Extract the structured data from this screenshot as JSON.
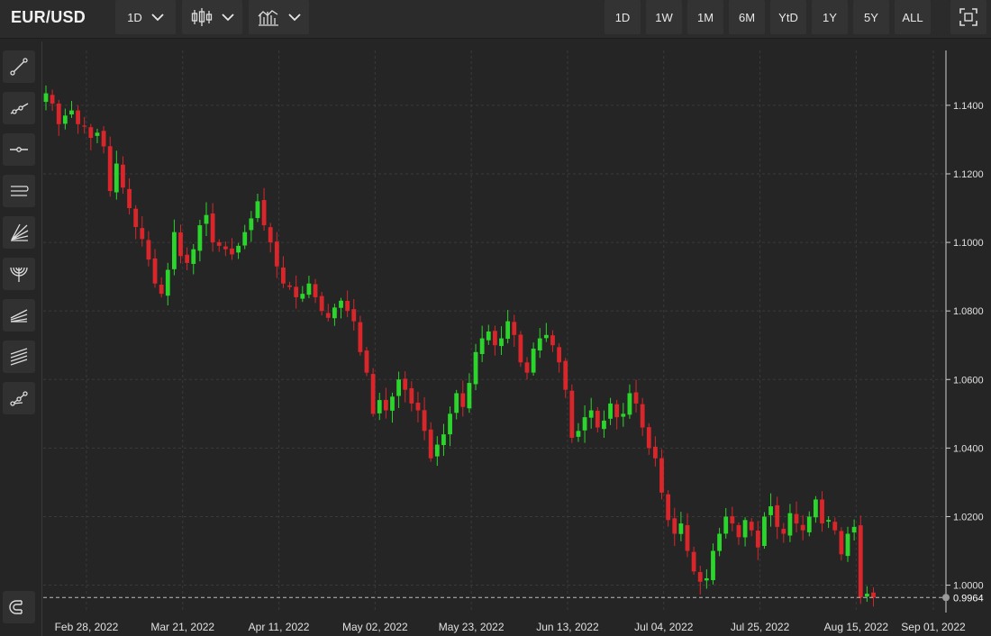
{
  "header": {
    "symbol": "EUR/USD",
    "interval_label": "1D",
    "chart_type_icon": "candlestick-icon",
    "indicators_icon": "indicators-icon",
    "ranges": [
      "1D",
      "1W",
      "1M",
      "6M",
      "YtD",
      "1Y",
      "5Y",
      "ALL"
    ],
    "fullscreen_icon": "fullscreen-icon"
  },
  "left_tools": [
    "trend-line-icon",
    "ray-icon",
    "horizontal-line-icon",
    "parallel-channel-icon",
    "fan-icon",
    "arc-icon",
    "pitchfork-icon",
    "fibonacci-icon",
    "path-icon",
    "magnet-icon"
  ],
  "colors": {
    "up": "#2bd52b",
    "down": "#d9262b",
    "background": "#252525",
    "grid": "#3a3a3a"
  },
  "chart_data": {
    "type": "candlestick",
    "y_ticks": [
      "1.1400",
      "1.1200",
      "1.1000",
      "1.0800",
      "1.0600",
      "1.0400",
      "1.0200",
      "1.0000"
    ],
    "x_ticks": [
      "Feb 28, 2022",
      "Mar 21, 2022",
      "Apr 11, 2022",
      "May 02, 2022",
      "May 23, 2022",
      "Jun 13, 2022",
      "Jul 04, 2022",
      "Jul 25, 2022",
      "Aug 15, 2022",
      "Sep 01, 2022"
    ],
    "last_price": "0.9964",
    "ylim": [
      0.992,
      1.156
    ],
    "closes": [
      1.1435,
      1.1405,
      1.1345,
      1.137,
      1.1385,
      1.1345,
      1.134,
      1.1305,
      1.132,
      1.128,
      1.115,
      1.123,
      1.116,
      1.11,
      1.1045,
      1.101,
      1.095,
      1.088,
      1.085,
      1.092,
      1.103,
      1.096,
      1.094,
      1.098,
      1.105,
      1.108,
      1.1,
      1.099,
      1.098,
      1.0965,
      1.099,
      1.103,
      1.107,
      1.112,
      1.105,
      1.1,
      1.093,
      1.088,
      1.087,
      1.084,
      1.085,
      1.088,
      1.084,
      1.08,
      1.078,
      1.081,
      1.083,
      1.08,
      1.077,
      1.068,
      1.062,
      1.05,
      1.054,
      1.051,
      1.055,
      1.06,
      1.057,
      1.053,
      1.051,
      1.045,
      1.037,
      1.041,
      1.044,
      1.05,
      1.056,
      1.052,
      1.059,
      1.068,
      1.072,
      1.074,
      1.07,
      1.072,
      1.077,
      1.073,
      1.065,
      1.062,
      1.069,
      1.072,
      1.073,
      1.07,
      1.065,
      1.057,
      1.043,
      1.045,
      1.049,
      1.051,
      1.046,
      1.048,
      1.053,
      1.049,
      1.05,
      1.056,
      1.053,
      1.046,
      1.04,
      1.037,
      1.027,
      1.019,
      1.015,
      1.018,
      1.01,
      1.004,
      1.001,
      1.002,
      1.01,
      1.015,
      1.02,
      1.018,
      1.014,
      1.019,
      1.016,
      1.011,
      1.02,
      1.023,
      1.017,
      1.015,
      1.021,
      1.018,
      1.016,
      1.02,
      1.025,
      1.018,
      1.019,
      1.016,
      1.009,
      1.015,
      1.017,
      0.9964,
      0.9975,
      0.9964
    ]
  }
}
